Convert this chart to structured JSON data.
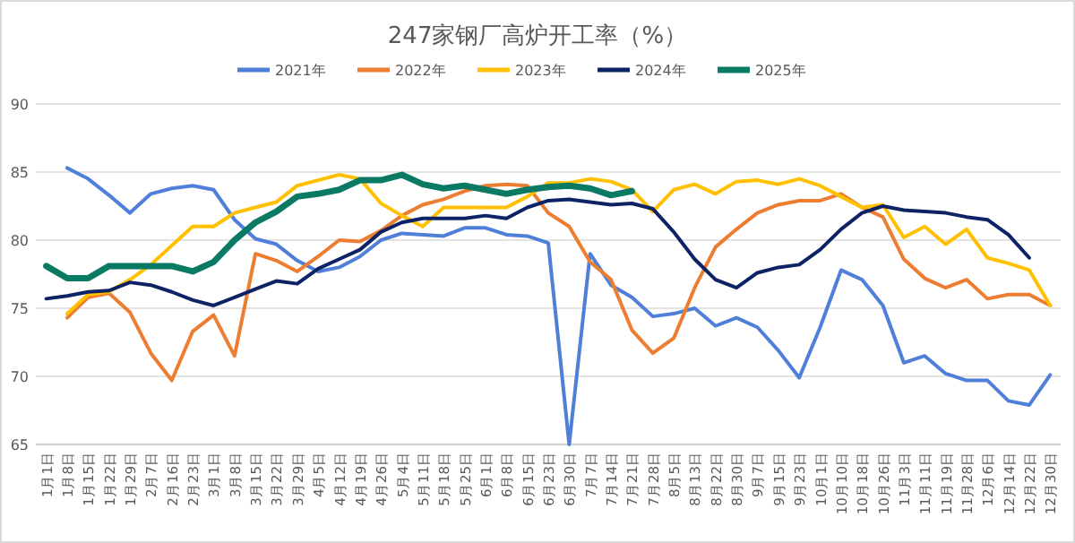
{
  "chart_data": {
    "type": "line",
    "title": "247家钢厂高炉开工率（%）",
    "categories": [
      "1月1日",
      "1月8日",
      "1月15日",
      "1月22日",
      "1月29日",
      "2月7日",
      "2月16日",
      "2月23日",
      "3月1日",
      "3月8日",
      "3月15日",
      "3月22日",
      "3月29日",
      "4月5日",
      "4月12日",
      "4月19日",
      "4月26日",
      "5月4日",
      "5月11日",
      "5月18日",
      "5月25日",
      "6月1日",
      "6月8日",
      "6月15日",
      "6月23日",
      "6月30日",
      "7月7日",
      "7月14日",
      "7月21日",
      "7月28日",
      "8月5日",
      "8月13日",
      "8月22日",
      "8月30日",
      "9月7日",
      "9月15日",
      "9月23日",
      "10月1日",
      "10月10日",
      "10月18日",
      "10月26日",
      "11月3日",
      "11月11日",
      "11月19日",
      "11月28日",
      "12月6日",
      "12月14日",
      "12月22日",
      "12月30日"
    ],
    "series": [
      {
        "name": "2021年",
        "color": "#4f7fd8",
        "values": [
          null,
          85.3,
          84.5,
          83.3,
          82.0,
          83.4,
          83.8,
          84.0,
          83.7,
          81.5,
          80.1,
          79.7,
          78.5,
          77.7,
          78.0,
          78.8,
          80.0,
          80.5,
          80.4,
          80.3,
          80.9,
          80.9,
          80.4,
          80.3,
          79.8,
          65,
          79.0,
          76.7,
          75.8,
          74.4,
          74.6,
          75.0,
          73.7,
          74.3,
          73.6,
          71.9,
          69.9,
          73.6,
          77.8,
          77.1,
          75.2,
          71.0,
          71.5,
          70.2,
          69.7,
          69.7,
          68.2,
          67.9,
          70.1
        ]
      },
      {
        "name": "2022年",
        "color": "#ed7d31",
        "values": [
          null,
          74.3,
          75.8,
          76.1,
          74.7,
          71.7,
          69.7,
          73.3,
          74.5,
          71.5,
          79.0,
          78.5,
          77.7,
          78.8,
          80.0,
          79.9,
          80.7,
          81.8,
          82.6,
          83.0,
          83.6,
          84.0,
          84.1,
          84.0,
          82.0,
          81.0,
          78.4,
          77.1,
          73.4,
          71.7,
          72.8,
          76.5,
          79.5,
          80.8,
          82.0,
          82.6,
          82.9,
          82.9,
          83.4,
          82.4,
          81.7,
          78.6,
          77.2,
          76.5,
          77.1,
          75.7,
          76.0,
          76.0,
          75.2
        ]
      },
      {
        "name": "2023年",
        "color": "#ffc000",
        "values": [
          null,
          74.6,
          76.0,
          76.2,
          77.1,
          78.2,
          79.6,
          81.0,
          81.0,
          82.0,
          82.4,
          82.8,
          84.0,
          84.4,
          84.8,
          84.5,
          82.7,
          81.8,
          81.0,
          82.4,
          82.4,
          82.4,
          82.4,
          83.2,
          84.2,
          84.2,
          84.5,
          84.3,
          83.7,
          82.1,
          83.7,
          84.1,
          83.4,
          84.3,
          84.4,
          84.1,
          84.5,
          84.0,
          83.2,
          82.4,
          82.6,
          80.2,
          81.0,
          79.7,
          80.8,
          78.7,
          78.3,
          77.8,
          75.2
        ]
      },
      {
        "name": "2024年",
        "color": "#0d2366",
        "values": [
          75.7,
          75.9,
          76.2,
          76.3,
          76.9,
          76.7,
          76.2,
          75.6,
          75.2,
          75.8,
          76.4,
          77.0,
          76.8,
          77.9,
          78.6,
          79.3,
          80.6,
          81.3,
          81.6,
          81.6,
          81.6,
          81.8,
          81.6,
          82.4,
          82.9,
          83.0,
          82.8,
          82.6,
          82.7,
          82.3,
          80.6,
          78.6,
          77.1,
          76.5,
          77.6,
          78.0,
          78.2,
          79.3,
          80.8,
          82.0,
          82.5,
          82.2,
          82.1,
          82.0,
          81.7,
          81.5,
          80.4,
          78.7,
          null
        ]
      },
      {
        "name": "2025年",
        "color": "#0b7a64",
        "values": [
          78.1,
          77.2,
          77.2,
          78.1,
          78.1,
          78.1,
          78.1,
          77.7,
          78.4,
          80.0,
          81.3,
          82.1,
          83.2,
          83.4,
          83.7,
          84.4,
          84.4,
          84.8,
          84.1,
          83.8,
          84.0,
          83.7,
          83.4,
          83.7,
          83.9,
          84.0,
          83.8,
          83.3,
          83.6,
          null,
          null,
          null,
          null,
          null,
          null,
          null,
          null,
          null,
          null,
          null,
          null,
          null,
          null,
          null,
          null,
          null,
          null,
          null,
          null
        ]
      }
    ],
    "ylim": [
      65,
      90
    ],
    "yticks": [
      65,
      70,
      75,
      80,
      85,
      90
    ],
    "grid": "y",
    "legend": "top"
  }
}
